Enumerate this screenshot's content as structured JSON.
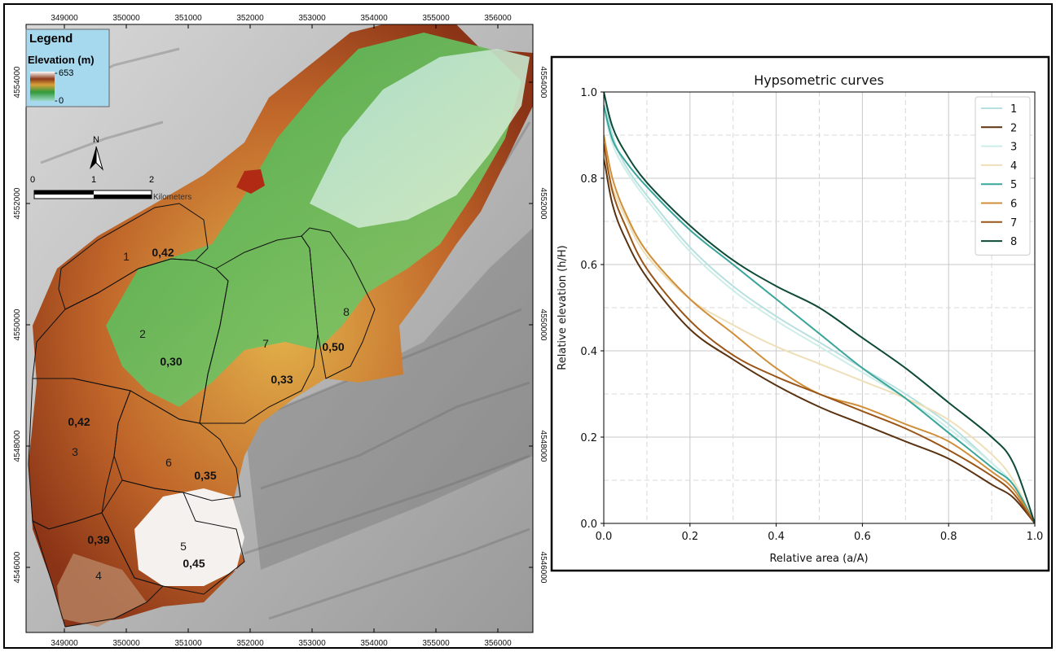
{
  "map": {
    "x_ticks": [
      "349000",
      "350000",
      "351000",
      "352000",
      "353000",
      "354000",
      "355000",
      "356000"
    ],
    "y_ticks": [
      "4554000",
      "4552000",
      "4550000",
      "4548000",
      "4546000"
    ],
    "legend": {
      "title": "Legend",
      "subtitle": "Elevation (m)",
      "max": "653",
      "min": "0",
      "bg_color": "#a6d8ee"
    },
    "north_label": "N",
    "scalebar": {
      "labels": [
        "0",
        "1",
        "2"
      ],
      "unit": "Kilometers"
    },
    "basins": [
      {
        "id": "1",
        "hi": "0,42"
      },
      {
        "id": "2",
        "hi": "0,30"
      },
      {
        "id": "3",
        "hi": "0,42"
      },
      {
        "id": "4",
        "hi": "0,39"
      },
      {
        "id": "5",
        "hi": "0,45"
      },
      {
        "id": "6",
        "hi": "0,35"
      },
      {
        "id": "7",
        "hi": "0,33"
      },
      {
        "id": "8",
        "hi": "0,50"
      }
    ]
  },
  "chart_data": {
    "type": "line",
    "title": "Hypsometric curves",
    "xlabel": "Relative area (a/A)",
    "ylabel": "Relative elevation (h/H)",
    "xlim": [
      0,
      1
    ],
    "ylim": [
      0,
      1
    ],
    "xticks": [
      "0.0",
      "0.2",
      "0.4",
      "0.6",
      "0.8",
      "1.0"
    ],
    "yticks": [
      "0.0",
      "0.2",
      "0.4",
      "0.6",
      "0.8",
      "1.0"
    ],
    "grid": true,
    "legend_position": "top-right",
    "x": [
      0,
      0.02,
      0.05,
      0.1,
      0.2,
      0.3,
      0.4,
      0.5,
      0.6,
      0.7,
      0.8,
      0.9,
      0.95,
      1.0
    ],
    "series": [
      {
        "name": "1",
        "color": "#b8dfe0",
        "values": [
          1.0,
          0.9,
          0.83,
          0.76,
          0.64,
          0.55,
          0.48,
          0.42,
          0.36,
          0.3,
          0.23,
          0.14,
          0.09,
          0.0
        ]
      },
      {
        "name": "2",
        "color": "#5a3210",
        "values": [
          0.85,
          0.74,
          0.66,
          0.57,
          0.45,
          0.38,
          0.32,
          0.27,
          0.23,
          0.19,
          0.15,
          0.09,
          0.06,
          0.0
        ]
      },
      {
        "name": "3",
        "color": "#cdeee8",
        "values": [
          0.96,
          0.88,
          0.82,
          0.75,
          0.63,
          0.54,
          0.47,
          0.41,
          0.35,
          0.29,
          0.22,
          0.14,
          0.09,
          0.0
        ]
      },
      {
        "name": "4",
        "color": "#efdfb8",
        "values": [
          0.86,
          0.78,
          0.71,
          0.62,
          0.52,
          0.46,
          0.41,
          0.37,
          0.33,
          0.29,
          0.24,
          0.16,
          0.1,
          0.0
        ]
      },
      {
        "name": "5",
        "color": "#3aa59a",
        "values": [
          0.97,
          0.89,
          0.84,
          0.78,
          0.68,
          0.6,
          0.52,
          0.44,
          0.36,
          0.29,
          0.21,
          0.13,
          0.09,
          0.0
        ]
      },
      {
        "name": "6",
        "color": "#cf8f3a",
        "values": [
          0.9,
          0.8,
          0.72,
          0.63,
          0.52,
          0.44,
          0.36,
          0.3,
          0.27,
          0.23,
          0.19,
          0.12,
          0.08,
          0.0
        ]
      },
      {
        "name": "7",
        "color": "#9a5416",
        "values": [
          0.88,
          0.77,
          0.69,
          0.59,
          0.47,
          0.39,
          0.34,
          0.3,
          0.26,
          0.22,
          0.17,
          0.11,
          0.07,
          0.0
        ]
      },
      {
        "name": "8",
        "color": "#0e4a38",
        "values": [
          1.0,
          0.92,
          0.86,
          0.79,
          0.69,
          0.61,
          0.55,
          0.5,
          0.43,
          0.36,
          0.28,
          0.2,
          0.14,
          0.0
        ]
      }
    ]
  }
}
